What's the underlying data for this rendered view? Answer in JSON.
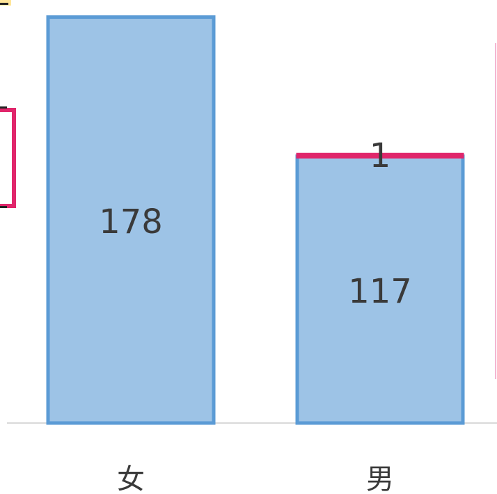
{
  "chart_data": {
    "type": "bar",
    "stacked": true,
    "categories": [
      "女",
      "男"
    ],
    "series": [
      {
        "values": [
          178,
          117
        ],
        "color": "#9dc3e6",
        "stroke": "#5b9bd5"
      },
      {
        "values": [
          0,
          1
        ],
        "color": "#e0266b",
        "stroke": "#e0266b"
      }
    ],
    "data_labels": [
      {
        "category": "女",
        "text": "178"
      },
      {
        "category": "男",
        "text": "117"
      },
      {
        "category": "男",
        "text": "1"
      }
    ],
    "title": "",
    "xlabel": "",
    "ylabel": "",
    "ylim": [
      0,
      180
    ],
    "grid": false,
    "legend": "none"
  },
  "colors": {
    "axis": "#d9d9d9",
    "label_text": "#3a3a3a",
    "left_frame": "#e0266b",
    "left_highlight": "#ffe699",
    "right_line": "#f4b6d2"
  }
}
